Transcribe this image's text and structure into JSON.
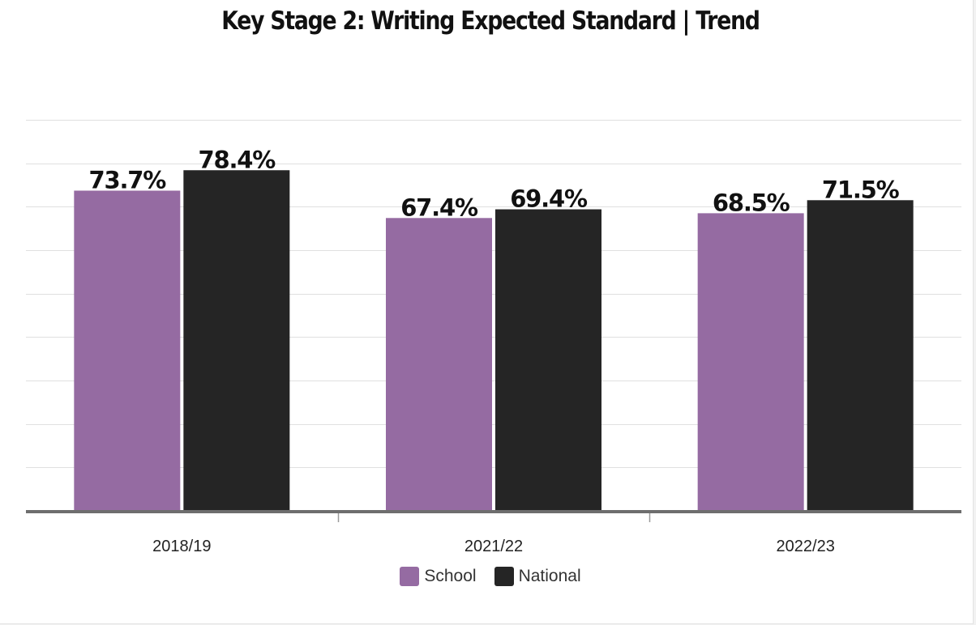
{
  "chart_data": {
    "type": "bar",
    "title": "Key Stage 2: Writing Expected Standard | Trend",
    "categories": [
      "2018/19",
      "2021/22",
      "2022/23"
    ],
    "series": [
      {
        "name": "School",
        "color": "#956ba2",
        "values": [
          73.7,
          67.4,
          68.5
        ],
        "labels": [
          "73.7%",
          "67.4%",
          "68.5%"
        ]
      },
      {
        "name": "National",
        "color": "#252525",
        "values": [
          78.4,
          69.4,
          71.5
        ],
        "labels": [
          "78.4%",
          "69.4%",
          "71.5%"
        ]
      }
    ],
    "ylim": [
      0,
      90
    ],
    "grid": true,
    "legend": "bottom-center"
  }
}
